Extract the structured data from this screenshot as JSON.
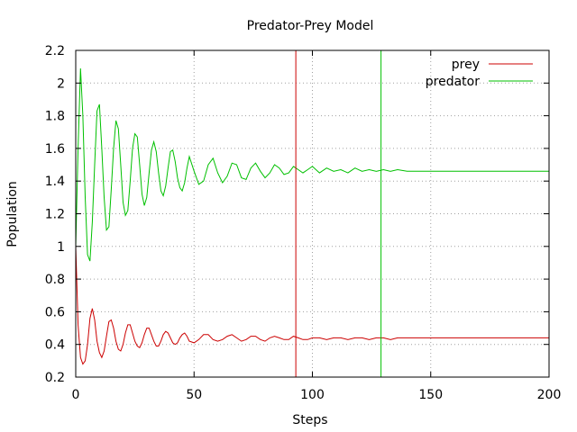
{
  "chart_data": {
    "type": "line",
    "title": "Predator-Prey Model",
    "xlabel": "Steps",
    "ylabel": "Population",
    "xlim": [
      0,
      200
    ],
    "ylim": [
      0.2,
      2.2
    ],
    "grid": true,
    "legend_position": "top-right",
    "x_ticks": [
      0,
      50,
      100,
      150,
      200
    ],
    "y_ticks": [
      0.2,
      0.4,
      0.6,
      0.8,
      1,
      1.2,
      1.4,
      1.6,
      1.8,
      2,
      2.2
    ],
    "x_tick_labels": [
      "0",
      "50",
      "100",
      "150",
      "200"
    ],
    "y_tick_labels": [
      "0.2",
      "0.4",
      "0.6",
      "0.8",
      "1",
      "1.2",
      "1.4",
      "1.6",
      "1.8",
      "2",
      "2.2"
    ],
    "series": [
      {
        "name": "prey",
        "color": "#cc0000",
        "x": [
          0,
          1,
          2,
          3,
          4,
          5,
          6,
          7,
          8,
          9,
          10,
          11,
          12,
          13,
          14,
          15,
          16,
          17,
          18,
          19,
          20,
          21,
          22,
          23,
          24,
          25,
          26,
          27,
          28,
          29,
          30,
          31,
          32,
          33,
          34,
          35,
          36,
          37,
          38,
          39,
          40,
          41,
          42,
          43,
          44,
          45,
          46,
          47,
          48,
          50,
          52,
          54,
          56,
          58,
          60,
          62,
          64,
          66,
          68,
          70,
          72,
          74,
          76,
          78,
          80,
          82,
          84,
          86,
          88,
          90,
          92,
          94,
          96,
          98,
          100,
          103,
          106,
          109,
          112,
          115,
          118,
          121,
          124,
          127,
          130,
          133,
          136,
          140,
          150,
          160,
          170,
          180,
          190,
          200
        ],
        "y": [
          1.0,
          0.52,
          0.32,
          0.28,
          0.3,
          0.4,
          0.56,
          0.62,
          0.55,
          0.42,
          0.35,
          0.32,
          0.36,
          0.45,
          0.54,
          0.55,
          0.5,
          0.42,
          0.37,
          0.36,
          0.4,
          0.47,
          0.52,
          0.52,
          0.47,
          0.42,
          0.39,
          0.38,
          0.41,
          0.46,
          0.5,
          0.5,
          0.46,
          0.42,
          0.39,
          0.39,
          0.42,
          0.46,
          0.48,
          0.47,
          0.44,
          0.41,
          0.4,
          0.41,
          0.44,
          0.46,
          0.47,
          0.45,
          0.42,
          0.41,
          0.43,
          0.46,
          0.46,
          0.43,
          0.42,
          0.43,
          0.45,
          0.46,
          0.44,
          0.42,
          0.43,
          0.45,
          0.45,
          0.43,
          0.42,
          0.44,
          0.45,
          0.44,
          0.43,
          0.43,
          0.45,
          0.44,
          0.43,
          0.43,
          0.44,
          0.44,
          0.43,
          0.44,
          0.44,
          0.43,
          0.44,
          0.44,
          0.43,
          0.44,
          0.44,
          0.43,
          0.44,
          0.44,
          0.44,
          0.44,
          0.44,
          0.44,
          0.44,
          0.44
        ]
      },
      {
        "name": "predator",
        "color": "#00c000",
        "x": [
          0,
          1,
          2,
          3,
          4,
          5,
          6,
          7,
          8,
          9,
          10,
          11,
          12,
          13,
          14,
          15,
          16,
          17,
          18,
          19,
          20,
          21,
          22,
          23,
          24,
          25,
          26,
          27,
          28,
          29,
          30,
          31,
          32,
          33,
          34,
          35,
          36,
          37,
          38,
          39,
          40,
          41,
          42,
          43,
          44,
          45,
          46,
          47,
          48,
          50,
          52,
          54,
          56,
          58,
          60,
          62,
          64,
          66,
          68,
          70,
          72,
          74,
          76,
          78,
          80,
          82,
          84,
          86,
          88,
          90,
          92,
          94,
          96,
          98,
          100,
          103,
          106,
          109,
          112,
          115,
          118,
          121,
          124,
          127,
          130,
          133,
          136,
          140,
          150,
          160,
          170,
          180,
          190,
          200
        ],
        "y": [
          1.0,
          1.6,
          2.09,
          1.8,
          1.3,
          0.95,
          0.91,
          1.15,
          1.5,
          1.83,
          1.87,
          1.6,
          1.3,
          1.1,
          1.12,
          1.35,
          1.6,
          1.77,
          1.72,
          1.5,
          1.27,
          1.19,
          1.22,
          1.4,
          1.6,
          1.69,
          1.67,
          1.5,
          1.32,
          1.25,
          1.3,
          1.45,
          1.59,
          1.64,
          1.58,
          1.45,
          1.34,
          1.31,
          1.37,
          1.48,
          1.58,
          1.59,
          1.52,
          1.42,
          1.36,
          1.34,
          1.39,
          1.48,
          1.55,
          1.46,
          1.38,
          1.4,
          1.5,
          1.54,
          1.45,
          1.39,
          1.43,
          1.51,
          1.5,
          1.42,
          1.41,
          1.48,
          1.51,
          1.46,
          1.42,
          1.45,
          1.5,
          1.48,
          1.44,
          1.45,
          1.49,
          1.47,
          1.45,
          1.47,
          1.49,
          1.45,
          1.48,
          1.46,
          1.47,
          1.45,
          1.48,
          1.46,
          1.47,
          1.46,
          1.47,
          1.46,
          1.47,
          1.46,
          1.46,
          1.46,
          1.46,
          1.46,
          1.46,
          1.46
        ]
      }
    ],
    "vertical_markers": [
      {
        "x": 93,
        "color": "#cc0000",
        "series": "prey"
      },
      {
        "x": 129,
        "color": "#00c000",
        "series": "predator"
      }
    ]
  }
}
